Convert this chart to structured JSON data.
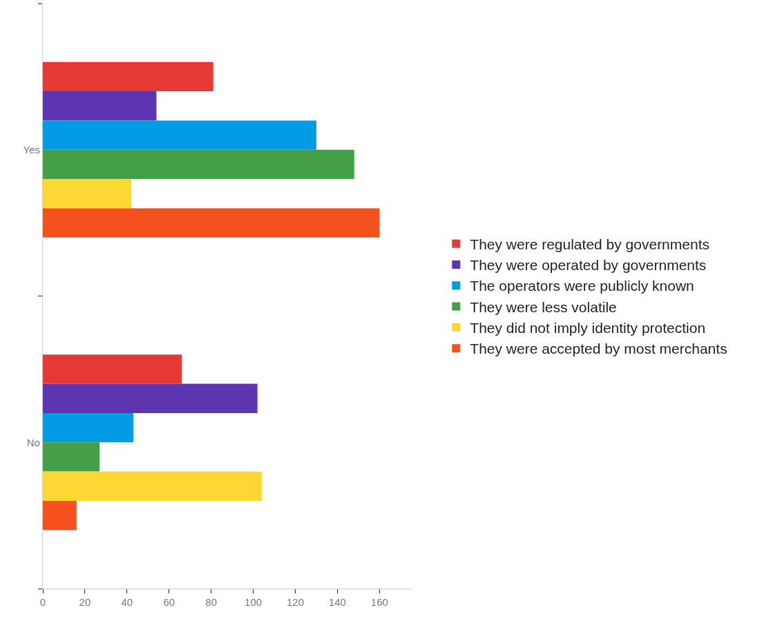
{
  "chart_data": {
    "type": "bar",
    "orientation": "horizontal",
    "categories": [
      "Yes",
      "No"
    ],
    "series": [
      {
        "name": "They were regulated by governments",
        "color": "#e53935",
        "values": [
          81,
          66
        ]
      },
      {
        "name": "They were operated by governments",
        "color": "#5e35b1",
        "values": [
          54,
          102
        ]
      },
      {
        "name": "The operators were publicly known",
        "color": "#039be5",
        "values": [
          130,
          43
        ]
      },
      {
        "name": "They were less volatile",
        "color": "#43a047",
        "values": [
          148,
          27
        ]
      },
      {
        "name": "They did not imply identity protection",
        "color": "#fdd835",
        "values": [
          42,
          104
        ]
      },
      {
        "name": "They were accepted by most merchants",
        "color": "#f4511e",
        "values": [
          160,
          16
        ]
      }
    ],
    "xlim": [
      0,
      175
    ],
    "xticks": [
      0,
      20,
      40,
      60,
      80,
      100,
      120,
      140,
      160
    ],
    "legend": "right"
  }
}
